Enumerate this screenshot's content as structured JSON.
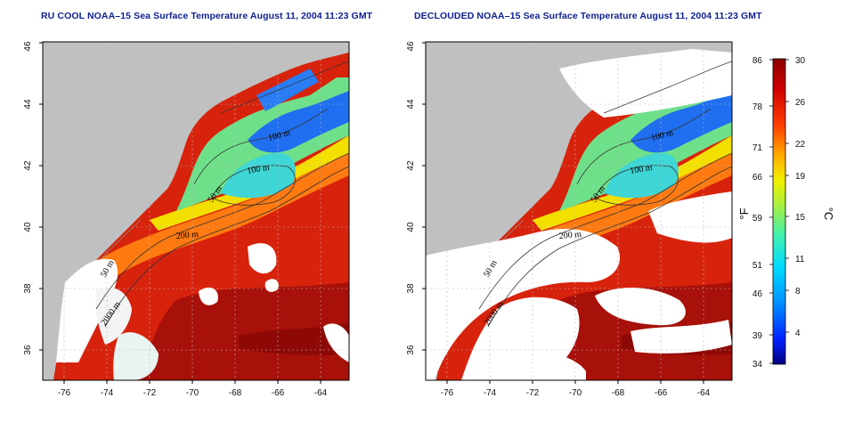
{
  "panels": [
    {
      "title": "RU COOL NOAA–15 Sea Surface Temperature August 11, 2004 11:23 GMT"
    },
    {
      "title": "DECLOUDED NOAA–15 Sea Surface Temperature August 11, 2004 11:23 GMT"
    }
  ],
  "axes": {
    "x_ticks": [
      "-76",
      "-74",
      "-72",
      "-70",
      "-68",
      "-66",
      "-64"
    ],
    "y_ticks": [
      "36",
      "38",
      "40",
      "42",
      "44",
      "46"
    ]
  },
  "contour_labels": [
    "100 m",
    "100 m",
    "50 m",
    "200 m",
    "50 m",
    "2000 m"
  ],
  "colorbar": {
    "fahrenheit_label": "°F",
    "celsius_label": "°C",
    "fahrenheit_ticks": [
      "86",
      "78",
      "71",
      "66",
      "59",
      "51",
      "46",
      "39",
      "34"
    ],
    "celsius_ticks": [
      "30",
      "26",
      "22",
      "19",
      "15",
      "11",
      "8",
      "4"
    ],
    "colors": [
      "#00007f",
      "#0033ff",
      "#00b7ff",
      "#33e6cc",
      "#7cf07c",
      "#d8f000",
      "#ffcc00",
      "#ff8000",
      "#ff2a00",
      "#a10000"
    ]
  },
  "colors": {
    "land": "#c0c0c0",
    "cloud": "#ffffff",
    "warm": "#d91d0a",
    "hot": "#a30d08",
    "title": "#0b1f8f"
  }
}
